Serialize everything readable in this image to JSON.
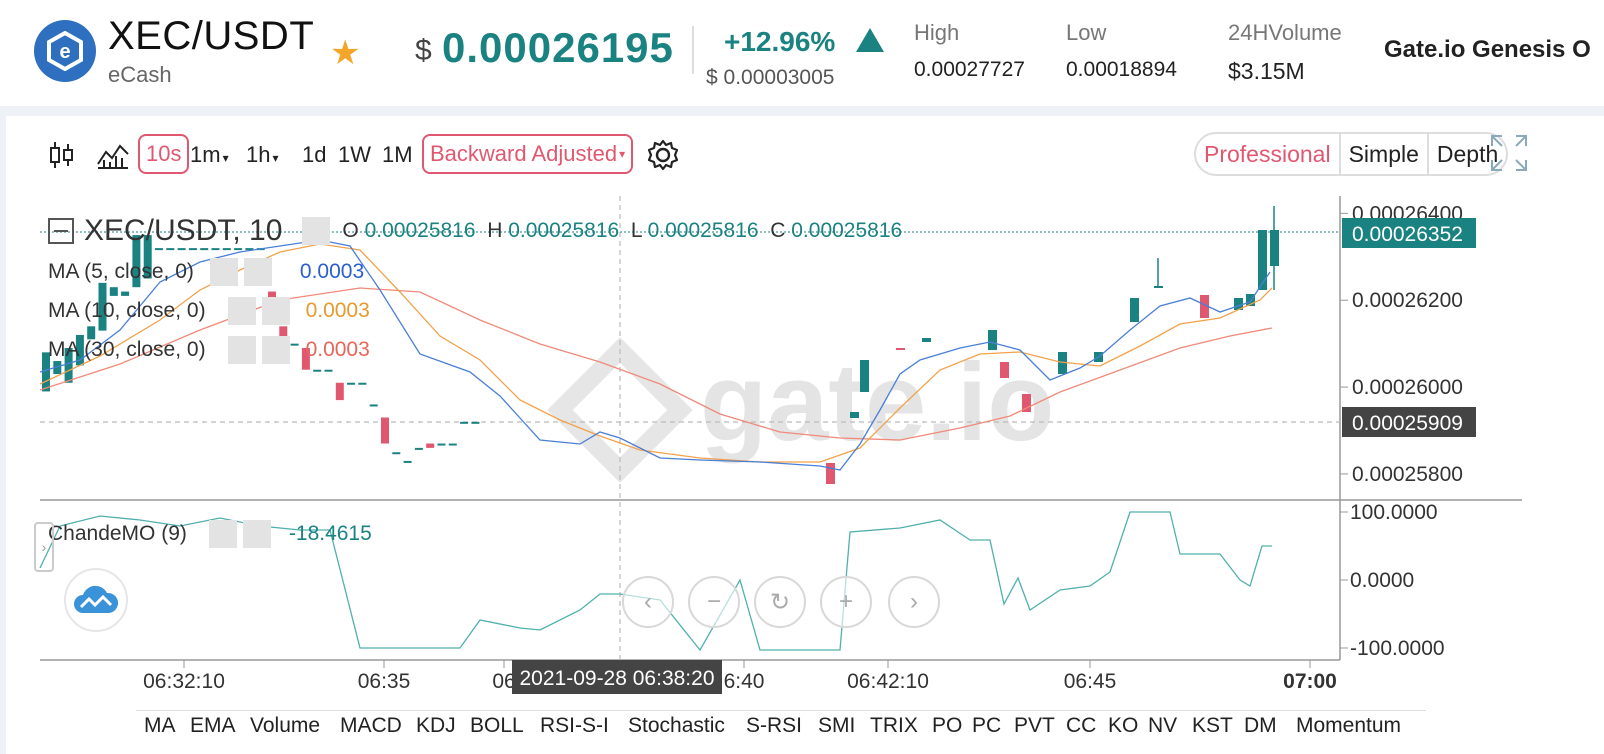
{
  "ticker": {
    "pair": "XEC/USDT",
    "coin_name": "eCash",
    "currency_symbol": "$",
    "price": "0.00026195",
    "change_pct": "+12.96%",
    "change_abs": "$ 0.00003005",
    "high_label": "High",
    "high_value": "0.00027727",
    "low_label": "Low",
    "low_value": "0.00018894",
    "volume_label": "24HVolume",
    "volume_symbol": "$",
    "volume_value": "3.15M",
    "exchange_label": "Gate.io Genesis O"
  },
  "toolbar": {
    "intervals": [
      "10s",
      "1m",
      "1h",
      "1d",
      "1W",
      "1M"
    ],
    "adjust_label": "Backward Adjusted",
    "views": [
      "Professional",
      "Simple",
      "Depth"
    ]
  },
  "legend": {
    "title": "XEC/USDT, 10",
    "ohlc": {
      "o_label": "O",
      "o": "0.00025816",
      "h_label": "H",
      "h": "0.00025816",
      "l_label": "L",
      "l": "0.00025816",
      "c_label": "C",
      "c": "0.00025816"
    },
    "ma5_label": "MA (5, close, 0)",
    "ma5_value": "0.0003",
    "ma10_label": "MA (10, close, 0)",
    "ma10_value": "0.0003",
    "ma30_label": "MA (30, close, 0)",
    "ma30_value": "0.0003",
    "cmo_label": "ChandeMO (9)",
    "cmo_value": "-18.4615"
  },
  "price_axis": {
    "ticks": [
      "0.00026400",
      "0.00026200",
      "0.00026000",
      "0.00025800"
    ],
    "last_price_tag": "0.00026352",
    "crosshair_tag": "0.00025909"
  },
  "cmo_axis": {
    "ticks": [
      "100.0000",
      "0.0000",
      "-100.0000"
    ]
  },
  "time_axis": {
    "ticks": [
      "06:32:10",
      "06:35",
      "06",
      "6:40",
      "06:42:10",
      "06:45",
      "07:00"
    ],
    "crosshair_time": "2021-09-28 06:38:20"
  },
  "indicator_tabs": [
    "MA",
    "EMA",
    "Volume",
    "MACD",
    "KDJ",
    "BOLL",
    "RSI-S-I",
    "Stochastic",
    "S-RSI",
    "SMI",
    "TRIX",
    "PO",
    "PC",
    "PVT",
    "CC",
    "KO",
    "NV",
    "KST",
    "DM",
    "Momentum"
  ],
  "colors": {
    "up": "#1b8282",
    "down": "#e05870",
    "ma5": "#4a7fd6",
    "ma10": "#f2a24b",
    "ma30": "#f08a7a",
    "cmo": "#4fb0ad"
  },
  "watermark": "gate.io",
  "chart_data": {
    "type": "candlestick",
    "ylim": [
      0.0002574,
      0.0002644
    ],
    "candles": [
      {
        "t": "06:30:20",
        "o": 0.0002599,
        "c": 0.0002608
      },
      {
        "t": "06:30:30",
        "o": 0.0002603,
        "c": 0.0002606
      },
      {
        "t": "06:30:40",
        "o": 0.0002601,
        "c": 0.0002609
      },
      {
        "t": "06:30:50",
        "o": 0.0002605,
        "c": 0.0002612
      },
      {
        "t": "06:31:00",
        "o": 0.0002611,
        "c": 0.0002614
      },
      {
        "t": "06:31:10",
        "o": 0.0002613,
        "c": 0.0002624
      },
      {
        "t": "06:31:20",
        "o": 0.0002621,
        "c": 0.0002623
      },
      {
        "t": "06:31:30",
        "o": 0.0002621,
        "c": 0.0002622
      },
      {
        "t": "06:31:40",
        "o": 0.0002623,
        "c": 0.0002635
      },
      {
        "t": "06:31:50",
        "o": 0.0002625,
        "c": 0.0002635
      },
      {
        "t": "06:32:00",
        "o": 0.0002632,
        "c": 0.0002632
      },
      {
        "t": "06:32:10",
        "o": 0.0002632,
        "c": 0.0002632
      },
      {
        "t": "06:32:20",
        "o": 0.0002632,
        "c": 0.0002632
      },
      {
        "t": "06:32:30",
        "o": 0.0002632,
        "c": 0.0002632
      },
      {
        "t": "06:32:40",
        "o": 0.0002632,
        "c": 0.0002632
      },
      {
        "t": "06:32:50",
        "o": 0.0002632,
        "c": 0.0002632
      },
      {
        "t": "06:33:00",
        "o": 0.0002632,
        "c": 0.0002632
      },
      {
        "t": "06:33:10",
        "o": 0.0002632,
        "c": 0.0002632
      },
      {
        "t": "06:33:20",
        "o": 0.0002632,
        "c": 0.0002632
      },
      {
        "t": "06:33:30",
        "o": 0.0002632,
        "c": 0.0002632
      },
      {
        "t": "06:33:40",
        "o": 0.0002622,
        "c": 0.0002617
      },
      {
        "t": "06:33:50",
        "o": 0.0002614,
        "c": 0.000261
      },
      {
        "t": "06:34:00",
        "o": 0.000261,
        "c": 0.000261
      },
      {
        "t": "06:34:10",
        "o": 0.0002609,
        "c": 0.0002604
      },
      {
        "t": "06:34:20",
        "o": 0.0002604,
        "c": 0.0002604
      },
      {
        "t": "06:34:30",
        "o": 0.0002604,
        "c": 0.0002604
      },
      {
        "t": "06:34:40",
        "o": 0.0002601,
        "c": 0.0002597
      },
      {
        "t": "06:34:50",
        "o": 0.0002601,
        "c": 0.0002601
      },
      {
        "t": "06:35:00",
        "o": 0.0002601,
        "c": 0.0002601
      },
      {
        "t": "06:35:10",
        "o": 0.0002596,
        "c": 0.0002596
      },
      {
        "t": "06:35:20",
        "o": 0.0002593,
        "c": 0.0002587
      },
      {
        "t": "06:35:30",
        "o": 0.0002585,
        "c": 0.0002585
      },
      {
        "t": "06:35:40",
        "o": 0.0002583,
        "c": 0.0002583
      },
      {
        "t": "06:35:50",
        "o": 0.0002586,
        "c": 0.0002586
      },
      {
        "t": "06:36:00",
        "o": 0.0002587,
        "c": 0.0002586
      },
      {
        "t": "06:36:10",
        "o": 0.0002587,
        "c": 0.0002587
      },
      {
        "t": "06:36:20",
        "o": 0.0002587,
        "c": 0.0002587
      },
      {
        "t": "06:36:30",
        "o": 0.0002592,
        "c": 0.0002592
      },
      {
        "t": "06:36:40",
        "o": 0.0002592,
        "c": 0.0002592
      }
    ]
  }
}
